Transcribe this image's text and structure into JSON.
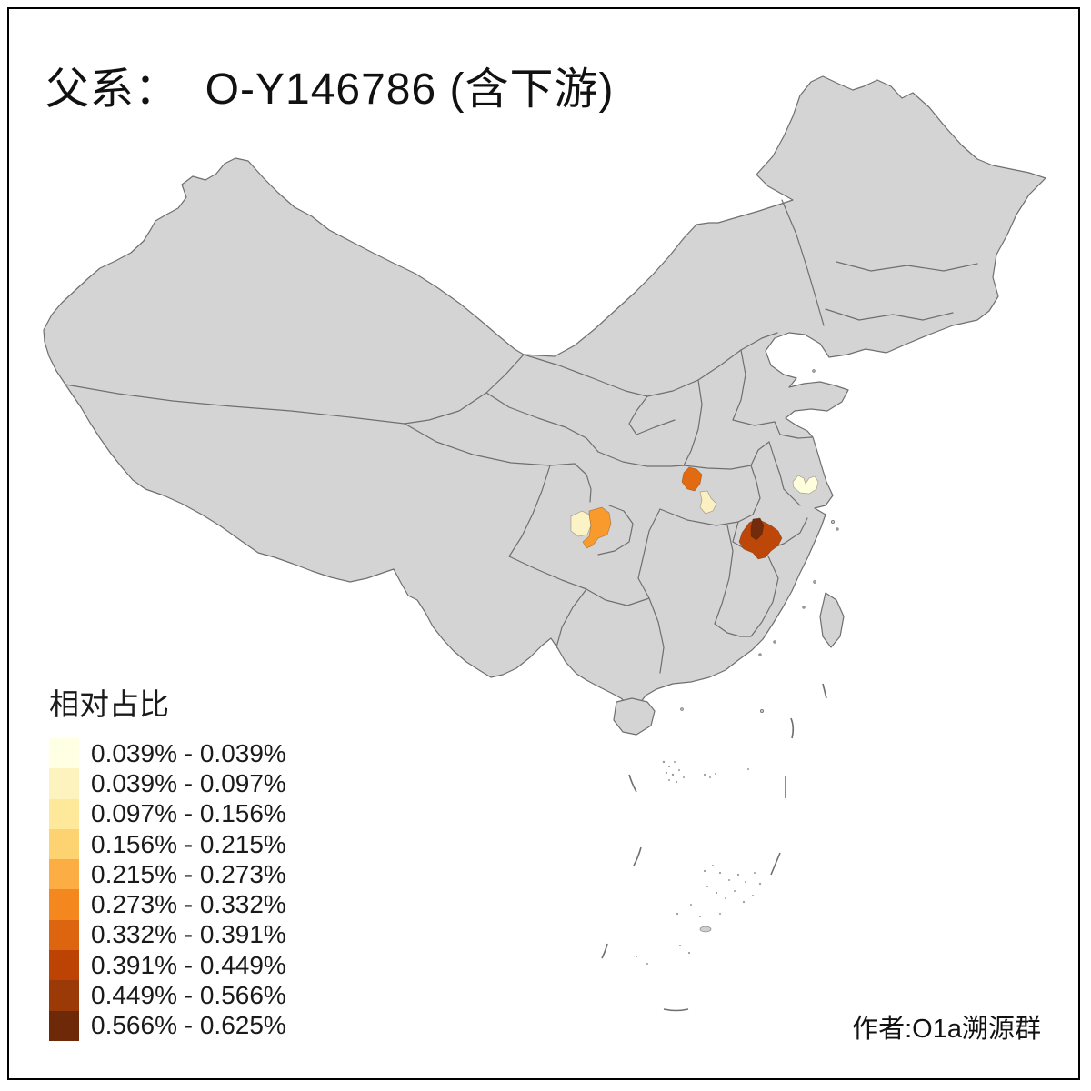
{
  "title": "父系：  O-Y146786 (含下游)",
  "credit": "作者:O1a溯源群",
  "legend": {
    "title": "相对占比",
    "classes": [
      {
        "label": "0.039% - 0.039%",
        "color": "#FFFFE3"
      },
      {
        "label": "0.039% - 0.097%",
        "color": "#FDF3BF"
      },
      {
        "label": "0.097% - 0.156%",
        "color": "#FEE89A"
      },
      {
        "label": "0.156% - 0.215%",
        "color": "#FDD271"
      },
      {
        "label": "0.215% - 0.273%",
        "color": "#FCAE44"
      },
      {
        "label": "0.273% - 0.332%",
        "color": "#F5871F"
      },
      {
        "label": "0.332% - 0.391%",
        "color": "#DE650F"
      },
      {
        "label": "0.391% - 0.449%",
        "color": "#BC4304"
      },
      {
        "label": "0.449% - 0.566%",
        "color": "#9B3A06"
      },
      {
        "label": "0.566% - 0.625%",
        "color": "#6E2A08"
      }
    ]
  },
  "map": {
    "land_fill": "#D4D4D4",
    "border_color": "#6F6F6F",
    "background": "#FFFFFF",
    "regions": [
      {
        "id": "region-sichuan-west",
        "color": "#FBF2C6",
        "class_label": "0.039% - 0.097%"
      },
      {
        "id": "region-sichuan-east",
        "color": "#F99A2C",
        "class_label": "0.273% - 0.332%"
      },
      {
        "id": "region-hubei-north",
        "color": "#E26A10",
        "class_label": "0.332% - 0.391%"
      },
      {
        "id": "region-hubei-south",
        "color": "#FAF0C2",
        "class_label": "0.039% - 0.097%"
      },
      {
        "id": "region-east-outer",
        "color": "#BC4708",
        "class_label": "0.391% - 0.449%"
      },
      {
        "id": "region-east-inner",
        "color": "#722B0B",
        "class_label": "0.566% - 0.625%"
      },
      {
        "id": "region-jiangsu",
        "color": "#FFFEDC",
        "class_label": "0.039% - 0.039%"
      }
    ]
  }
}
